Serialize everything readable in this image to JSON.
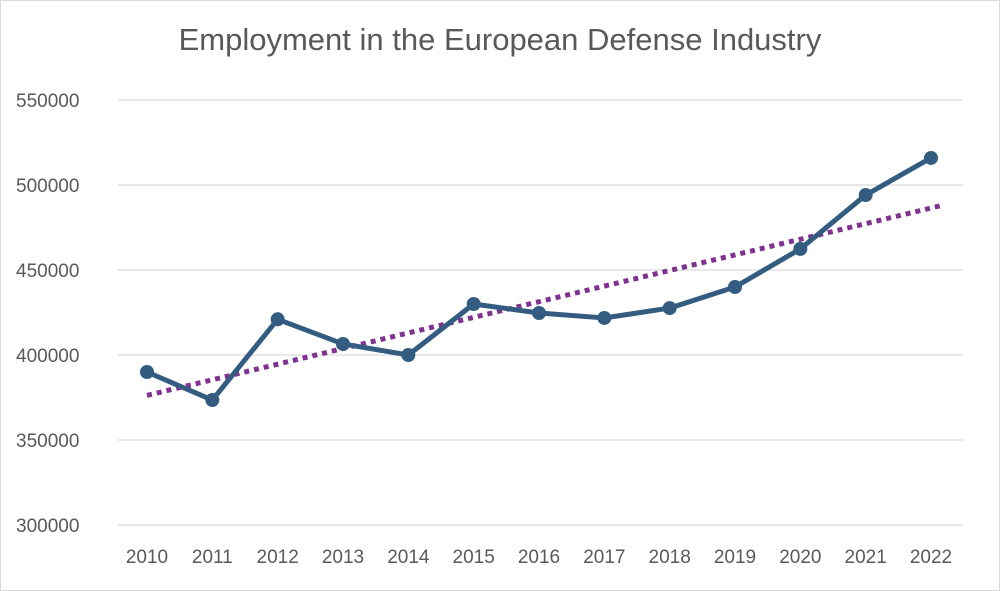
{
  "chart_data": {
    "type": "line",
    "title": "Employment in the European Defense Industry",
    "xlabel": "",
    "ylabel": "",
    "categories": [
      "2010",
      "2011",
      "2012",
      "2013",
      "2014",
      "2015",
      "2016",
      "2017",
      "2018",
      "2019",
      "2020",
      "2021",
      "2022"
    ],
    "series": [
      {
        "values": [
          390000,
          373500,
          421000,
          406500,
          400000,
          430000,
          424700,
          421800,
          427600,
          440000,
          462400,
          494100,
          515900
        ],
        "color": "#335C80",
        "markers": true
      }
    ],
    "trendline": {
      "type": "linear",
      "style": "dotted",
      "color": "#7F3290"
    },
    "ylim": [
      300000,
      550000
    ],
    "yticks": [
      "300000",
      "350000",
      "400000",
      "450000",
      "500000",
      "550000"
    ],
    "grid": true,
    "legend": "none"
  }
}
